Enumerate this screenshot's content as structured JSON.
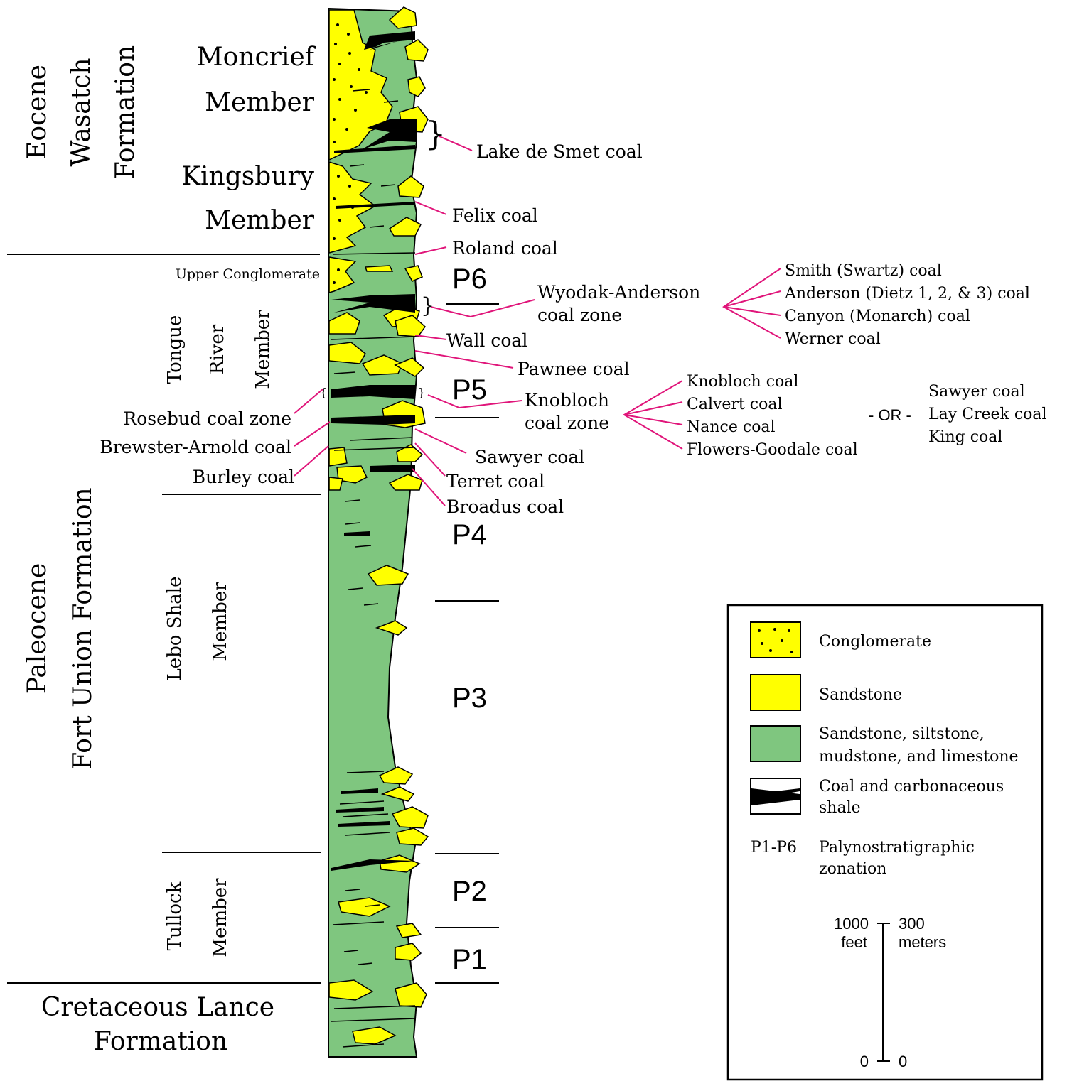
{
  "colors": {
    "mudstone_green": "#7fc67f",
    "sandstone_yellow": "#ffff00",
    "coal_black": "#000000",
    "leader_magenta": "#e0157a"
  },
  "stratigraphy": {
    "eocene": {
      "line1": "Eocene",
      "line2": "Wasatch",
      "line3": "Formation"
    },
    "moncrief": {
      "line1": "Moncrief",
      "line2": "Member"
    },
    "kingsbury": {
      "line1": "Kingsbury",
      "line2": "Member"
    },
    "upper_conglomerate": "Upper Conglomerate",
    "tongue_river": {
      "line1": "Tongue",
      "line2": "River",
      "line3": "Member"
    },
    "paleocene": {
      "line1": "Paleocene",
      "line2": "Fort Union Formation"
    },
    "lebo": {
      "line1": "Lebo Shale",
      "line2": "Member"
    },
    "tullock": {
      "line1": "Tullock",
      "line2": "Member"
    },
    "cretaceous": {
      "line1": "Cretaceous Lance",
      "line2": "Formation"
    }
  },
  "coals": {
    "lake_de_smet": "Lake de Smet coal",
    "felix": "Felix coal",
    "roland": "Roland coal",
    "wyodak_line1": "Wyodak-Anderson",
    "wyodak_line2": "coal zone",
    "wall": "Wall coal",
    "pawnee": "Pawnee coal",
    "knobloch_line1": "Knobloch",
    "knobloch_line2": "coal zone",
    "rosebud": "Rosebud coal zone",
    "brewster": "Brewster-Arnold coal",
    "burley": "Burley coal",
    "sawyer": "Sawyer coal",
    "terret": "Terret coal",
    "broadus": "Broadus coal"
  },
  "wyodak_beds": [
    "Smith (Swartz) coal",
    "Anderson (Dietz 1, 2, & 3) coal",
    "Canyon (Monarch) coal",
    "Werner coal"
  ],
  "knobloch_beds": [
    "Knobloch coal",
    "Calvert coal",
    "Nance coal",
    "Flowers-Goodale coal"
  ],
  "or_label": "- OR -",
  "alt_beds": [
    "Sawyer coal",
    "Lay Creek coal",
    "King coal"
  ],
  "zones": [
    "P6",
    "P5",
    "P4",
    "P3",
    "P2",
    "P1"
  ],
  "legend": {
    "conglomerate": "Conglomerate",
    "sandstone": "Sandstone",
    "mixed_line1": "Sandstone, siltstone,",
    "mixed_line2": "mudstone, and limestone",
    "coal_line1": "Coal and carbonaceous",
    "coal_line2": "shale",
    "p_key": "P1-P6",
    "p_desc_line1": "Palynostratigraphic",
    "p_desc_line2": "zonation"
  },
  "scale": {
    "feet_value": "1000",
    "feet_unit": "feet",
    "meters_value": "300",
    "meters_unit": "meters",
    "zero_left": "0",
    "zero_right": "0"
  }
}
